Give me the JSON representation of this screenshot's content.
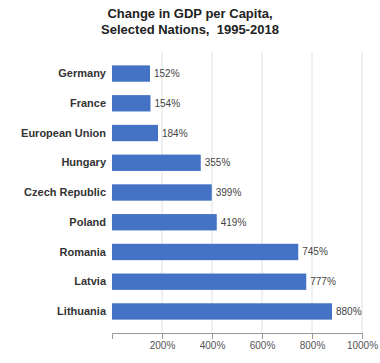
{
  "chart_data": {
    "type": "bar",
    "orientation": "horizontal",
    "title": "Change in GDP per Capita,\nSelected Nations,  1995-2018",
    "categories": [
      "Germany",
      "France",
      "European Union",
      "Hungary",
      "Czech Republic",
      "Poland",
      "Romania",
      "Latvia",
      "Lithuania"
    ],
    "values": [
      152,
      154,
      184,
      355,
      399,
      419,
      745,
      777,
      880
    ],
    "value_labels": [
      "152%",
      "154%",
      "184%",
      "355%",
      "399%",
      "419%",
      "745%",
      "777%",
      "880%"
    ],
    "data_labels": true,
    "color": "#4472C4",
    "xlim": [
      0,
      1000
    ],
    "xticks": [
      {
        "value": 200,
        "label": "200%"
      },
      {
        "value": 400,
        "label": "400%"
      },
      {
        "value": 600,
        "label": "600%"
      },
      {
        "value": 800,
        "label": "800%"
      },
      {
        "value": 1000,
        "label": "1000%"
      }
    ],
    "grid": true
  }
}
